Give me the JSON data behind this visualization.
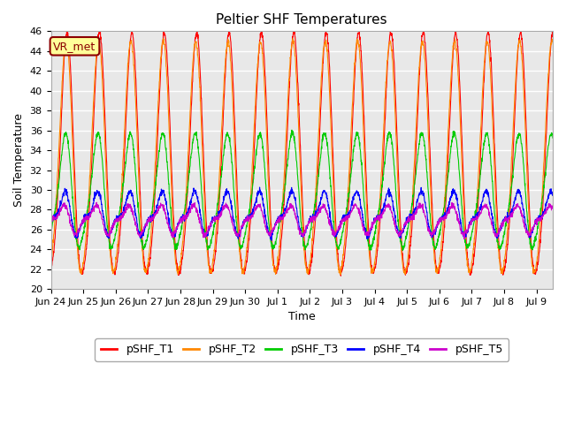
{
  "title": "Peltier SHF Temperatures",
  "xlabel": "Time",
  "ylabel": "Soil Temperature",
  "ylim": [
    20,
    46
  ],
  "yticks": [
    20,
    22,
    24,
    26,
    28,
    30,
    32,
    34,
    36,
    38,
    40,
    42,
    44,
    46
  ],
  "background_color": "#ffffff",
  "plot_bg_color": "#e8e8e8",
  "grid_color": "#ffffff",
  "series": [
    {
      "label": "pSHF_T1",
      "color": "#ff0000",
      "amp": 12.0,
      "mean": 32.5,
      "phase": -1.5,
      "amp2": 1.5,
      "phase2": 1.2
    },
    {
      "label": "pSHF_T2",
      "color": "#ff8800",
      "amp": 11.5,
      "mean": 32.5,
      "phase": -1.3,
      "amp2": 1.2,
      "phase2": 1.4
    },
    {
      "label": "pSHF_T3",
      "color": "#00cc00",
      "amp": 5.5,
      "mean": 29.5,
      "phase": -1.1,
      "amp2": 1.0,
      "phase2": 1.5
    },
    {
      "label": "pSHF_T4",
      "color": "#0000ff",
      "amp": 1.8,
      "mean": 27.5,
      "phase": -0.8,
      "amp2": 0.8,
      "phase2": 1.8
    },
    {
      "label": "pSHF_T5",
      "color": "#cc00cc",
      "amp": 1.2,
      "mean": 27.0,
      "phase": -0.5,
      "amp2": 0.5,
      "phase2": 2.0
    }
  ],
  "annotation_text": "VR_met",
  "num_days": 15.5,
  "points_per_day": 144,
  "title_fontsize": 11,
  "axis_fontsize": 9,
  "tick_fontsize": 8,
  "legend_fontsize": 9
}
